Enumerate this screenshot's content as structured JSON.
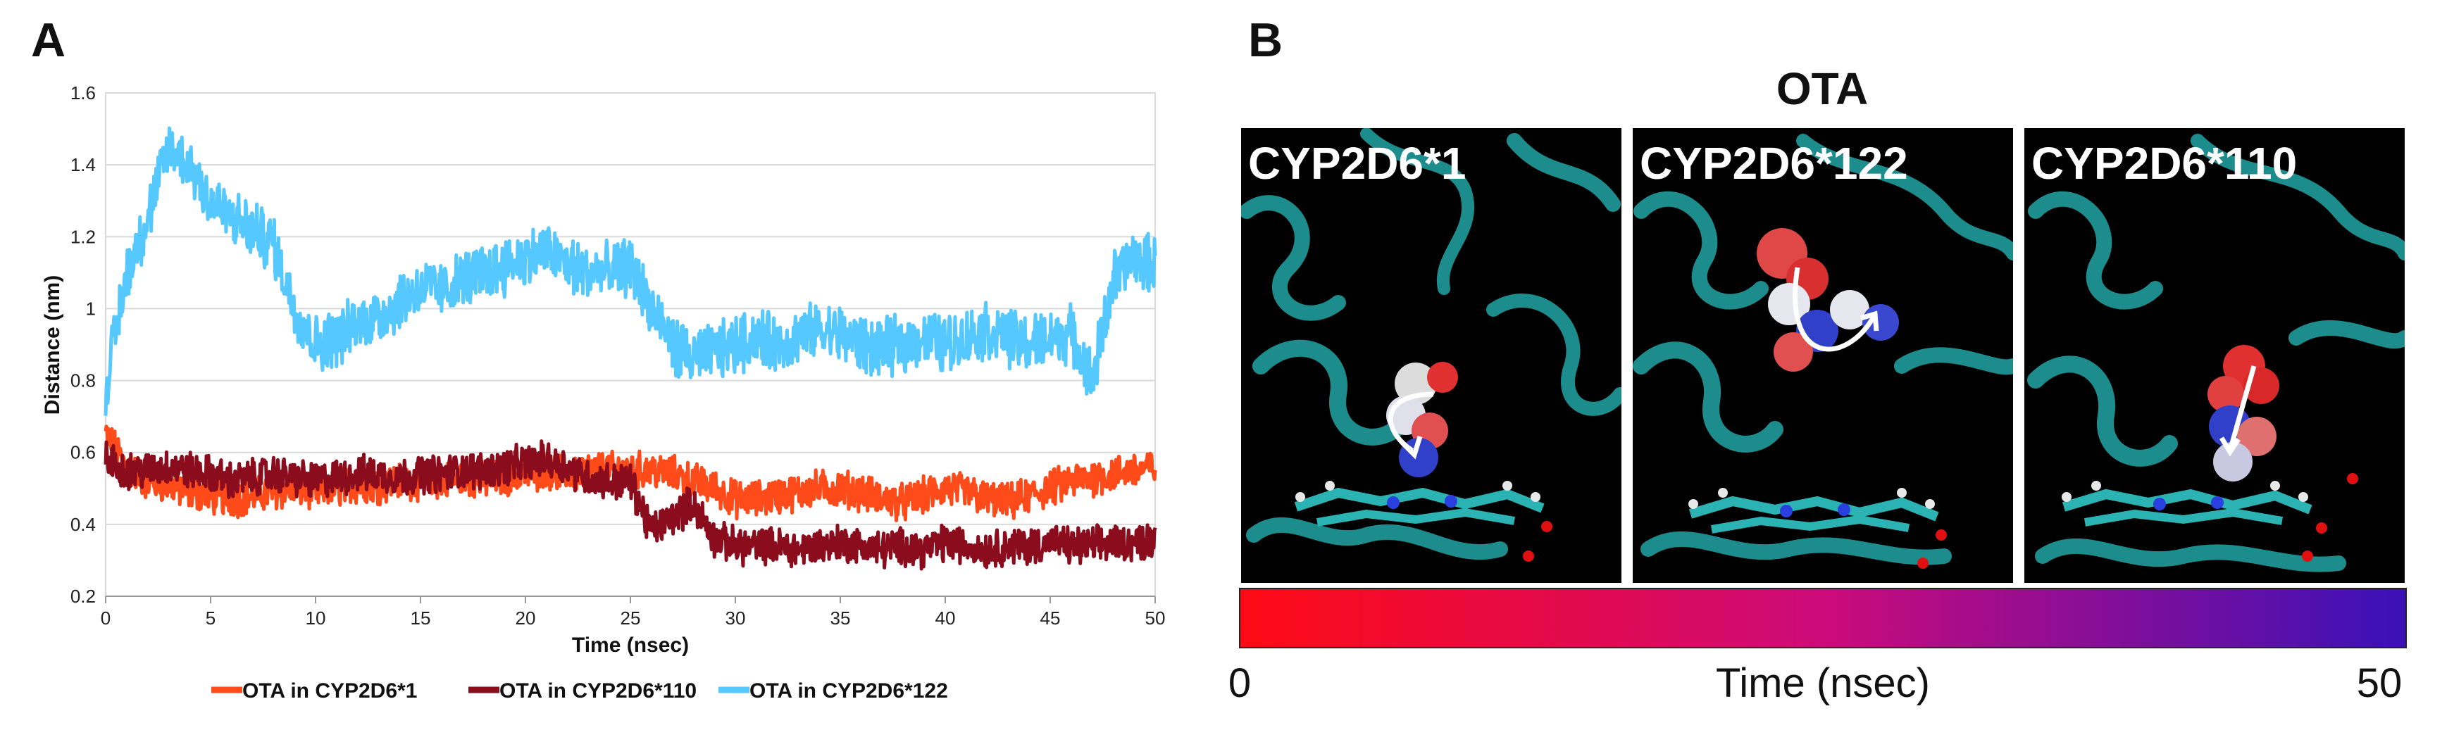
{
  "panel_a_label": "A",
  "panel_b_label": "B",
  "chart_data": {
    "type": "line",
    "title": "",
    "xlabel": "Time (nsec)",
    "ylabel": "Distance (nm)",
    "xlim": [
      0,
      50
    ],
    "ylim": [
      0.2,
      1.6
    ],
    "xticks": [
      "0",
      "5",
      "10",
      "15",
      "20",
      "25",
      "30",
      "35",
      "40",
      "45",
      "50"
    ],
    "yticks": [
      "0.2",
      "0.4",
      "0.6",
      "0.8",
      "1",
      "1.2",
      "1.4",
      "1.6"
    ],
    "grid": true,
    "legend_position": "bottom",
    "series": [
      {
        "name": "OTA in CYP2D6*1",
        "color": "#ff4b1a",
        "x": [
          0,
          1,
          2,
          3,
          4,
          5,
          6,
          7,
          8,
          9,
          10,
          11,
          12,
          13,
          14,
          15,
          16,
          17,
          18,
          19,
          20,
          21,
          22,
          23,
          24,
          25,
          26,
          27,
          28,
          29,
          30,
          31,
          32,
          33,
          34,
          35,
          36,
          37,
          38,
          39,
          40,
          41,
          42,
          43,
          44,
          45,
          46,
          47,
          48,
          49,
          50
        ],
        "y": [
          0.65,
          0.56,
          0.52,
          0.51,
          0.49,
          0.48,
          0.47,
          0.48,
          0.49,
          0.5,
          0.49,
          0.5,
          0.51,
          0.51,
          0.52,
          0.52,
          0.52,
          0.53,
          0.52,
          0.53,
          0.54,
          0.55,
          0.54,
          0.55,
          0.55,
          0.55,
          0.55,
          0.54,
          0.52,
          0.5,
          0.47,
          0.47,
          0.48,
          0.49,
          0.5,
          0.5,
          0.49,
          0.47,
          0.46,
          0.48,
          0.5,
          0.49,
          0.47,
          0.46,
          0.48,
          0.5,
          0.52,
          0.53,
          0.54,
          0.55,
          0.56
        ]
      },
      {
        "name": "OTA in CYP2D6*110",
        "color": "#8b0d1d",
        "x": [
          0,
          1,
          2,
          3,
          4,
          5,
          6,
          7,
          8,
          9,
          10,
          11,
          12,
          13,
          14,
          15,
          16,
          17,
          18,
          19,
          20,
          21,
          22,
          23,
          24,
          25,
          26,
          27,
          28,
          29,
          30,
          31,
          32,
          33,
          34,
          35,
          36,
          37,
          38,
          39,
          40,
          41,
          42,
          43,
          44,
          45,
          46,
          47,
          48,
          49,
          50
        ],
        "y": [
          0.58,
          0.55,
          0.55,
          0.56,
          0.55,
          0.54,
          0.52,
          0.53,
          0.54,
          0.53,
          0.52,
          0.53,
          0.54,
          0.54,
          0.53,
          0.54,
          0.54,
          0.55,
          0.55,
          0.56,
          0.57,
          0.58,
          0.56,
          0.53,
          0.52,
          0.52,
          0.38,
          0.42,
          0.46,
          0.36,
          0.34,
          0.34,
          0.34,
          0.33,
          0.34,
          0.35,
          0.34,
          0.33,
          0.34,
          0.33,
          0.35,
          0.34,
          0.33,
          0.34,
          0.34,
          0.35,
          0.34,
          0.34,
          0.35,
          0.35,
          0.36
        ]
      },
      {
        "name": "OTA  in CYP2D6*122",
        "color": "#55c8ff",
        "x": [
          0,
          1,
          2,
          3,
          4,
          5,
          6,
          7,
          8,
          9,
          10,
          11,
          12,
          13,
          14,
          15,
          16,
          17,
          18,
          19,
          20,
          21,
          22,
          23,
          24,
          25,
          26,
          27,
          28,
          29,
          30,
          31,
          32,
          33,
          34,
          35,
          36,
          37,
          38,
          39,
          40,
          41,
          42,
          43,
          44,
          45,
          46,
          47,
          48,
          49,
          50
        ],
        "y": [
          0.78,
          1.1,
          1.25,
          1.45,
          1.4,
          1.3,
          1.25,
          1.22,
          1.18,
          1.0,
          0.9,
          0.92,
          0.96,
          0.98,
          1.02,
          1.06,
          1.05,
          1.08,
          1.1,
          1.12,
          1.14,
          1.16,
          1.12,
          1.1,
          1.1,
          1.12,
          1.0,
          0.9,
          0.86,
          0.88,
          0.9,
          0.92,
          0.9,
          0.92,
          0.94,
          0.93,
          0.9,
          0.89,
          0.9,
          0.92,
          0.9,
          0.92,
          0.94,
          0.92,
          0.9,
          0.92,
          0.93,
          0.8,
          1.08,
          1.14,
          1.12
        ]
      }
    ]
  },
  "structure_panel": {
    "title": "OTA",
    "labels": [
      "CYP2D6*1",
      "CYP2D6*122",
      "CYP2D6*110"
    ],
    "colorbar": {
      "min_label": "0",
      "max_label": "50",
      "axis_label": "Time (nsec)",
      "start_color": "#ff0a14",
      "mid_color": "#cc0b7a",
      "end_color": "#3a11b8"
    },
    "background_color": "#000000",
    "protein_color": "#1d8c8c"
  }
}
